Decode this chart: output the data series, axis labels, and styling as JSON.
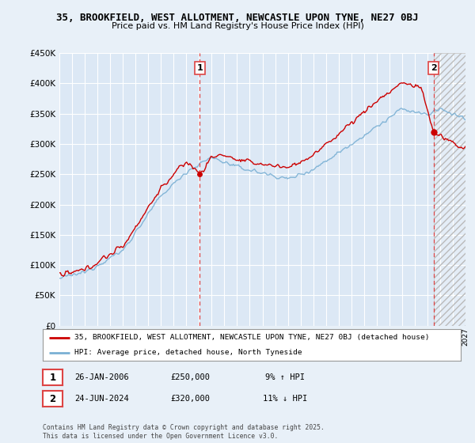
{
  "title_line1": "35, BROOKFIELD, WEST ALLOTMENT, NEWCASTLE UPON TYNE, NE27 0BJ",
  "title_line2": "Price paid vs. HM Land Registry's House Price Index (HPI)",
  "legend_line1": "35, BROOKFIELD, WEST ALLOTMENT, NEWCASTLE UPON TYNE, NE27 0BJ (detached house)",
  "legend_line2": "HPI: Average price, detached house, North Tyneside",
  "footnote": "Contains HM Land Registry data © Crown copyright and database right 2025.\nThis data is licensed under the Open Government Licence v3.0.",
  "label1_date": "26-JAN-2006",
  "label1_price": "£250,000",
  "label1_hpi": "9% ↑ HPI",
  "label2_date": "24-JUN-2024",
  "label2_price": "£320,000",
  "label2_hpi": "11% ↓ HPI",
  "point1_year": 2006.07,
  "point1_value": 250000,
  "point2_year": 2024.48,
  "point2_value": 320000,
  "vline1_year": 2006.07,
  "vline2_year": 2024.48,
  "ylim_min": 0,
  "ylim_max": 450000,
  "xlim_min": 1995,
  "xlim_max": 2027,
  "background_color": "#e8f0f8",
  "plot_bg_color": "#dce8f5",
  "grid_color": "#ffffff",
  "red_line_color": "#cc0000",
  "blue_line_color": "#7ab0d4",
  "vline_color": "#dd4444",
  "hatch_color": "#bbbbbb"
}
